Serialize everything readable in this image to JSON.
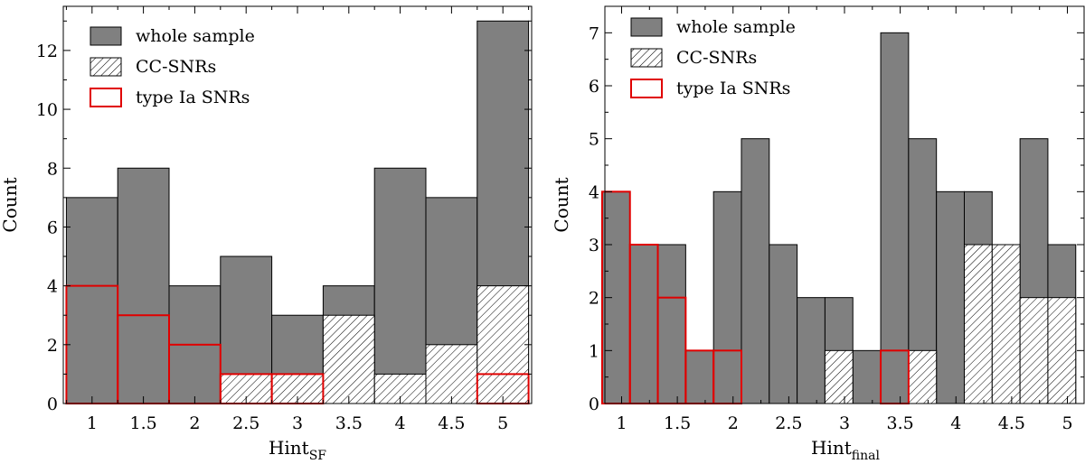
{
  "colors": {
    "whole": "#808080",
    "cc_fill": "#ffffff",
    "ia_stroke": "#e00000",
    "axis": "#000000"
  },
  "legend": {
    "whole": "whole sample",
    "cc": "CC-SNRs",
    "ia": "type Ia SNRs"
  },
  "chart_data": [
    {
      "type": "bar",
      "title": "",
      "xlabel": "Hint",
      "xlabel_sub": "SF",
      "ylabel": "Count",
      "ylim": [
        0,
        13.5
      ],
      "yticks": [
        0,
        2,
        4,
        6,
        8,
        10,
        12
      ],
      "ytick_labels": [
        "0",
        "2",
        "4",
        "6",
        "8",
        "10",
        "12"
      ],
      "xlim": [
        0.72,
        5.28
      ],
      "xticks": [
        1,
        1.5,
        2,
        2.5,
        3,
        3.5,
        4,
        4.5,
        5
      ],
      "xtick_labels": [
        "1",
        "1.5",
        "2",
        "2.5",
        "3",
        "3.5",
        "4",
        "4.5",
        "5"
      ],
      "bin_width": 0.5,
      "bins": [
        1,
        1.5,
        2,
        2.5,
        3,
        3.5,
        4,
        4.5,
        5
      ],
      "series": [
        {
          "name": "whole sample",
          "values": [
            7,
            8,
            4,
            5,
            3,
            4,
            8,
            7,
            13
          ]
        },
        {
          "name": "CC-SNRs",
          "values": [
            0,
            0,
            0,
            1,
            1,
            3,
            1,
            2,
            4
          ]
        },
        {
          "name": "type Ia SNRs",
          "values": [
            4,
            3,
            2,
            1,
            1,
            0,
            0,
            0,
            1
          ]
        }
      ]
    },
    {
      "type": "bar",
      "title": "",
      "xlabel": "Hint",
      "xlabel_sub": "final",
      "ylabel": "Count",
      "ylim": [
        0,
        7.5
      ],
      "yticks": [
        0,
        1,
        2,
        3,
        4,
        5,
        6,
        7
      ],
      "ytick_labels": [
        "0",
        "1",
        "2",
        "3",
        "4",
        "5",
        "6",
        "7"
      ],
      "xlim": [
        0.85,
        5.15
      ],
      "xticks": [
        1,
        1.5,
        2,
        2.5,
        3,
        3.5,
        4,
        4.5,
        5
      ],
      "xtick_labels": [
        "1",
        "1.5",
        "2",
        "2.5",
        "3",
        "3.5",
        "4",
        "4.5",
        "5"
      ],
      "bin_width": 0.25,
      "bins": [
        0.95,
        1.2,
        1.45,
        1.7,
        1.95,
        2.2,
        2.45,
        2.7,
        2.95,
        3.2,
        3.45,
        3.7,
        3.95,
        4.2,
        4.45,
        4.7,
        4.95
      ],
      "series": [
        {
          "name": "whole sample",
          "values": [
            4,
            3,
            3,
            1,
            4,
            5,
            3,
            2,
            2,
            1,
            7,
            5,
            4,
            4,
            3,
            5,
            3
          ]
        },
        {
          "name": "CC-SNRs",
          "values": [
            0,
            0,
            0,
            0,
            0,
            0,
            0,
            0,
            1,
            0,
            0,
            1,
            0,
            3,
            3,
            2,
            2
          ]
        },
        {
          "name": "type Ia SNRs",
          "values": [
            4,
            3,
            2,
            1,
            1,
            0,
            0,
            0,
            0,
            0,
            1,
            0,
            0,
            0,
            0,
            0,
            0
          ]
        }
      ]
    }
  ]
}
